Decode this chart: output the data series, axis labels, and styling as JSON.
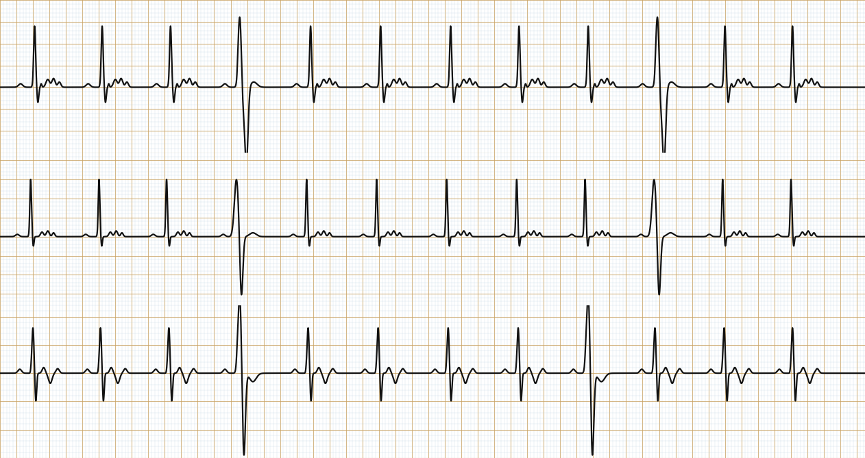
{
  "bg_color": "#ffffff",
  "grid_minor_color": "#a8c8d8",
  "grid_major_color": "#c8a060",
  "grid_minor_lw": 0.3,
  "grid_major_lw": 0.8,
  "grid_minor_alpha": 0.55,
  "grid_major_alpha": 0.75,
  "ecg_color": "#111111",
  "ecg_linewidth": 1.6,
  "n_strips": 3,
  "duration": 10.5,
  "fs": 1000,
  "minor_t": 0.04,
  "major_t": 0.2,
  "sep_color": "#888888",
  "sep_lw": 1.0
}
